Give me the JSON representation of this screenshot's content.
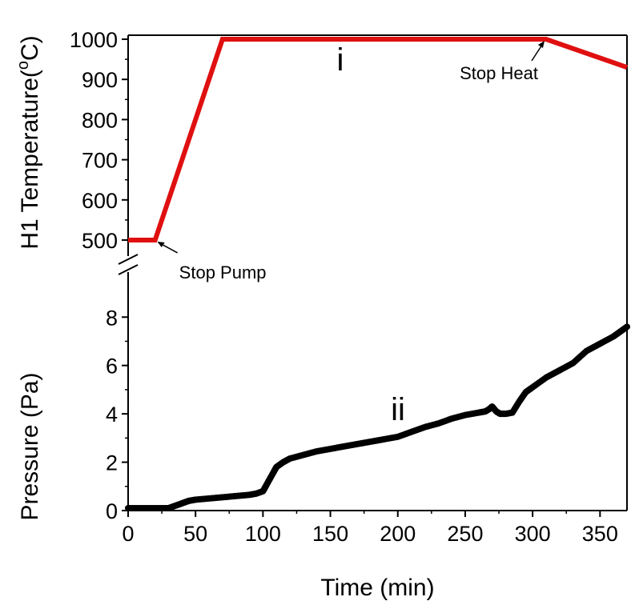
{
  "chart_data": [
    {
      "type": "line",
      "panel": "upper",
      "marker": "i",
      "ylabel": "H1 Temperature(°C)",
      "ylabel_base": "H1 Temperature(",
      "ylabel_sup": "o",
      "ylabel_tail": "C)",
      "ylim": [
        480,
        1010
      ],
      "yticks": [
        500,
        600,
        700,
        800,
        900,
        1000
      ],
      "y_axis_break": true,
      "color": "#e01010",
      "series": [
        {
          "x": [
            0,
            20,
            70,
            310,
            370
          ],
          "y": [
            500,
            500,
            1000,
            1000,
            930
          ]
        }
      ],
      "annotations": [
        {
          "text": "Stop Pump",
          "x": 20,
          "y": 500
        },
        {
          "text": "Stop Heat",
          "x": 310,
          "y": 1000
        }
      ]
    },
    {
      "type": "scatter",
      "panel": "lower",
      "marker": "ii",
      "xlabel": "Time (min)",
      "ylabel": "Pressure (Pa)",
      "xlim": [
        0,
        370
      ],
      "ylim": [
        0,
        9.2
      ],
      "xticks": [
        0,
        50,
        100,
        150,
        200,
        250,
        300,
        350
      ],
      "yticks": [
        0,
        2,
        4,
        6,
        8
      ],
      "color": "#000000",
      "series": [
        {
          "x": [
            0,
            10,
            20,
            30,
            35,
            40,
            45,
            50,
            60,
            70,
            80,
            90,
            95,
            100,
            102,
            105,
            108,
            110,
            115,
            120,
            130,
            140,
            150,
            160,
            170,
            180,
            190,
            200,
            210,
            220,
            230,
            240,
            250,
            260,
            265,
            268,
            270,
            273,
            276,
            280,
            285,
            290,
            295,
            300,
            310,
            320,
            330,
            340,
            350,
            360,
            365,
            370
          ],
          "y": [
            0.1,
            0.1,
            0.1,
            0.1,
            0.2,
            0.3,
            0.4,
            0.45,
            0.5,
            0.55,
            0.6,
            0.65,
            0.7,
            0.8,
            1.0,
            1.3,
            1.6,
            1.8,
            2.0,
            2.15,
            2.3,
            2.45,
            2.55,
            2.65,
            2.75,
            2.85,
            2.95,
            3.05,
            3.25,
            3.45,
            3.6,
            3.8,
            3.95,
            4.05,
            4.1,
            4.2,
            4.3,
            4.1,
            4.0,
            4.0,
            4.05,
            4.5,
            4.9,
            5.1,
            5.5,
            5.8,
            6.1,
            6.6,
            6.9,
            7.2,
            7.4,
            7.6
          ]
        }
      ]
    }
  ]
}
